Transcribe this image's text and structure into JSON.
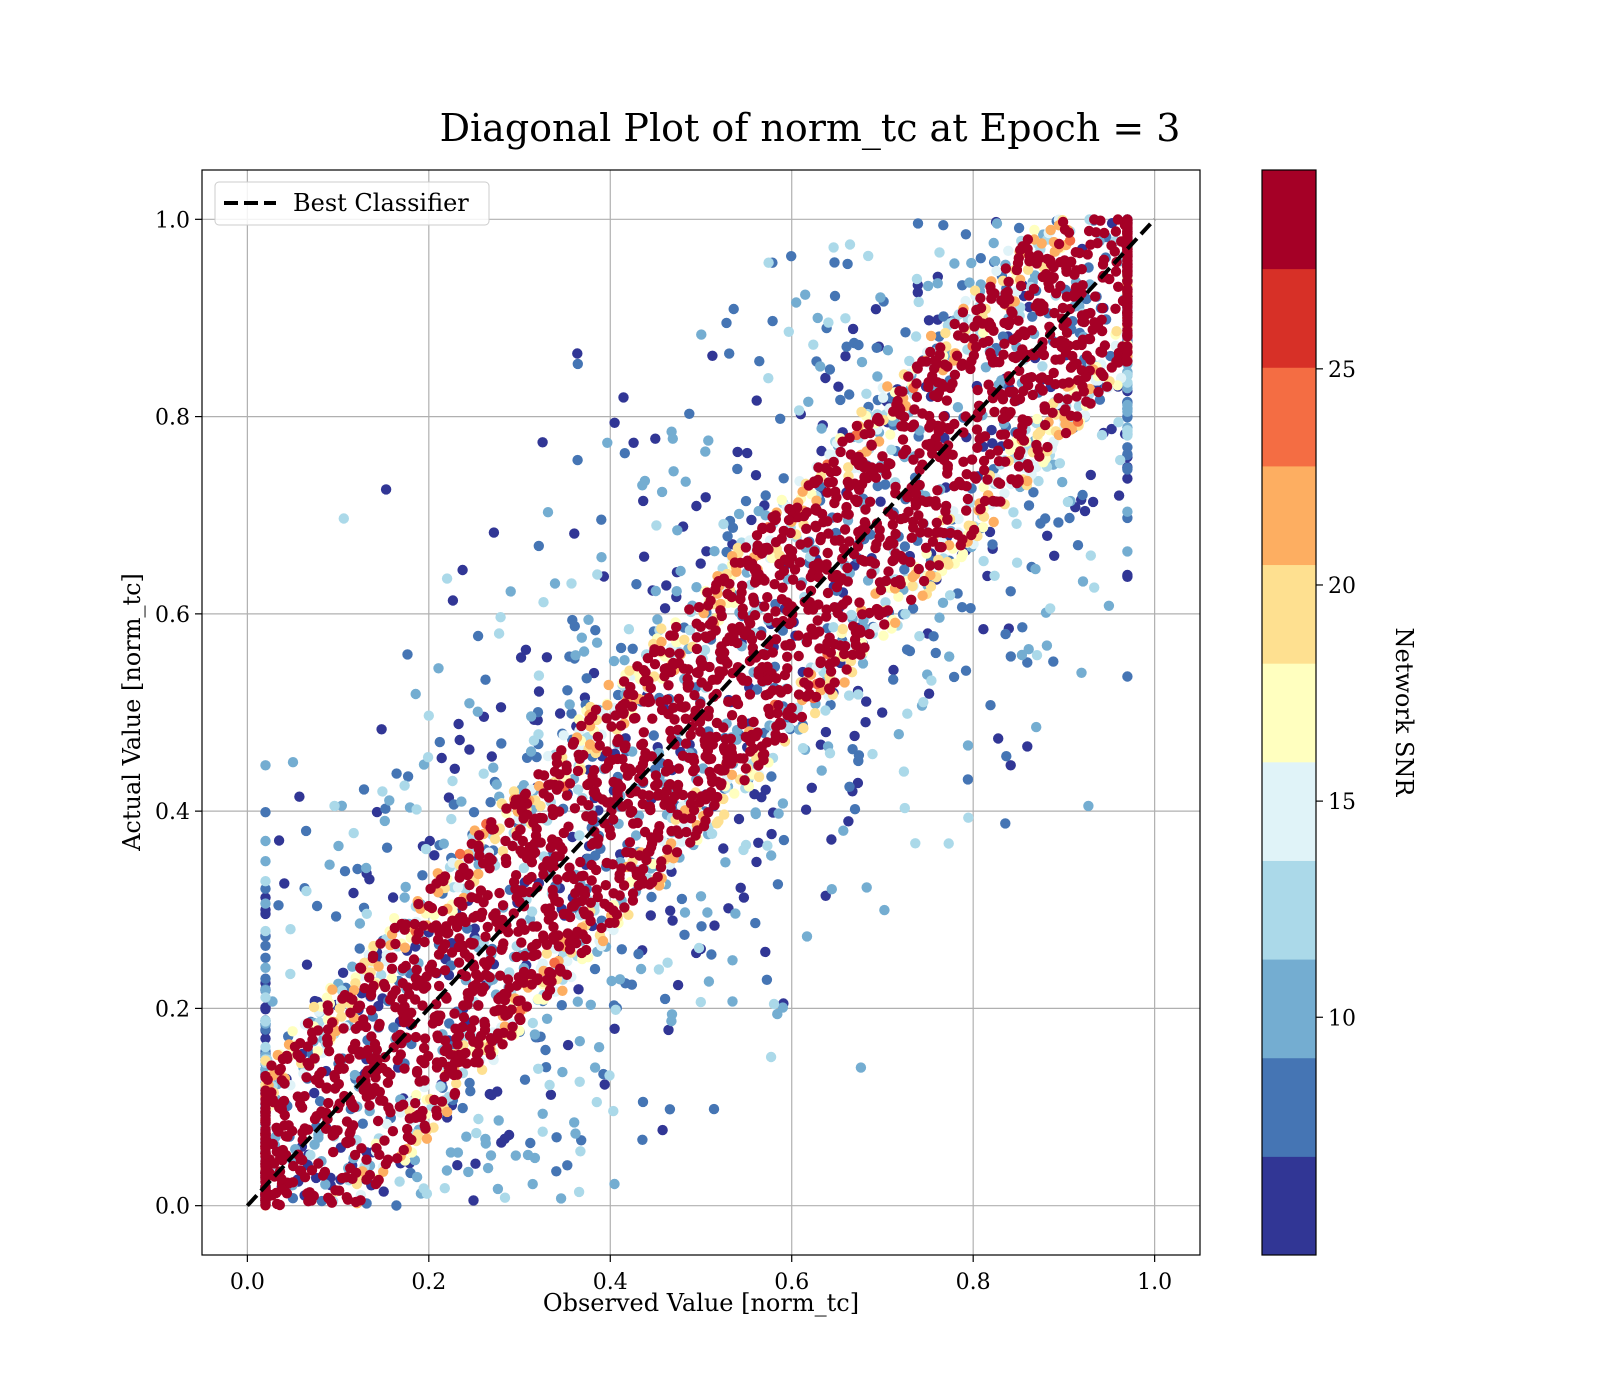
{
  "chart_data": {
    "type": "scatter",
    "title": "Diagonal Plot of norm_tc at Epoch = 3",
    "xlabel": "Observed Value [norm_tc]",
    "ylabel": "Actual Value [norm_tc]",
    "xlim": [
      -0.05,
      1.05
    ],
    "ylim": [
      -0.05,
      1.05
    ],
    "xticks": [
      0.0,
      0.2,
      0.4,
      0.6,
      0.8,
      1.0
    ],
    "xtick_labels": [
      "0.0",
      "0.2",
      "0.4",
      "0.6",
      "0.8",
      "1.0"
    ],
    "yticks": [
      0.0,
      0.2,
      0.4,
      0.6,
      0.8,
      1.0
    ],
    "ytick_labels": [
      "0.0",
      "0.2",
      "0.4",
      "0.6",
      "0.8",
      "1.0"
    ],
    "grid": true,
    "legend": {
      "placement": "top-left",
      "entries": [
        "Best Classifier"
      ]
    },
    "reference_line": {
      "name": "Best Classifier",
      "x": [
        0.0,
        1.0
      ],
      "y": [
        0.0,
        1.0
      ],
      "style": "dashed",
      "color": "#000000"
    },
    "colorbar": {
      "label": "Network SNR",
      "range": [
        4.5,
        29.6
      ],
      "ticks": [
        10,
        15,
        20,
        25
      ],
      "tick_labels": [
        "10",
        "15",
        "20",
        "25"
      ],
      "colors": [
        "#313695",
        "#4575b4",
        "#74add1",
        "#abd9e9",
        "#e0f3f8",
        "#ffffbf",
        "#fee090",
        "#fdae61",
        "#f46d43",
        "#d73027",
        "#a50026"
      ]
    },
    "scatter_summary": {
      "point_count_approx": 4600,
      "band_halfwidth_norm_tc": 0.12,
      "note_x_min": 0.02,
      "note_x_max": 0.97
    }
  }
}
